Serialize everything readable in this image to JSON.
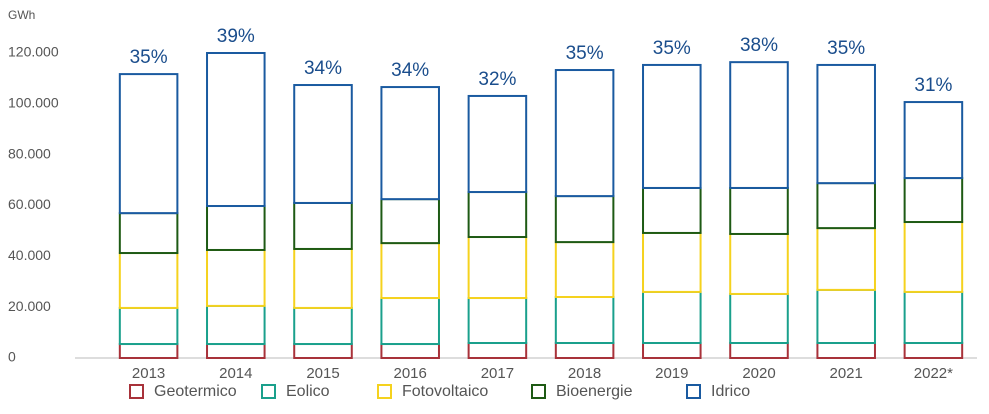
{
  "chart_data": {
    "type": "bar",
    "stacked": true,
    "y_label": "GWh",
    "categories": [
      "2013",
      "2014",
      "2015",
      "2016",
      "2017",
      "2018",
      "2019",
      "2020",
      "2021",
      "2022*"
    ],
    "series": [
      {
        "name": "Geotermico",
        "color": "#a8323a",
        "values": [
          5500,
          5500,
          5500,
          5500,
          5900,
          5900,
          5900,
          5900,
          5900,
          5900
        ]
      },
      {
        "name": "Eolico",
        "color": "#1aa08c",
        "values": [
          14200,
          15000,
          14200,
          18100,
          17700,
          18100,
          20100,
          19300,
          20900,
          20100
        ]
      },
      {
        "name": "Fotovoltaico",
        "color": "#f5d21e",
        "values": [
          21600,
          22000,
          23200,
          21600,
          24000,
          21600,
          23200,
          23600,
          24300,
          27500
        ]
      },
      {
        "name": "Bioenergie",
        "color": "#1e5a14",
        "values": [
          15700,
          17300,
          18100,
          17300,
          17700,
          18100,
          17700,
          18100,
          17700,
          17300
        ]
      },
      {
        "name": "Idrico",
        "color": "#1a5aa0",
        "values": [
          54700,
          60200,
          46400,
          44100,
          37800,
          49600,
          48400,
          49500,
          46500,
          29900
        ]
      }
    ],
    "annotations": [
      "35%",
      "39%",
      "34%",
      "34%",
      "32%",
      "35%",
      "35%",
      "38%",
      "35%",
      "31%"
    ],
    "ylim": [
      0,
      120000
    ],
    "yticks": [
      0,
      {
        "value": 20000,
        "label": "20.000"
      },
      {
        "value": 40000,
        "label": "40.000"
      },
      {
        "value": 60000,
        "label": "60.000"
      },
      {
        "value": 80000,
        "label": "80.000"
      },
      {
        "value": 100000,
        "label": "100.000"
      },
      {
        "value": 120000,
        "label": "120.000"
      }
    ],
    "grid": false
  }
}
